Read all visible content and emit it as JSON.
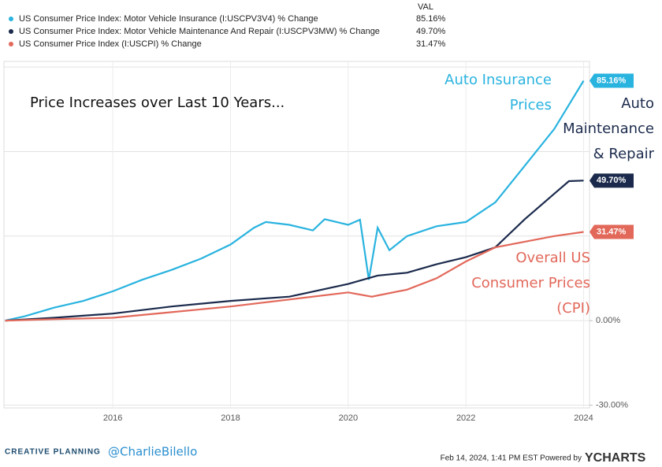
{
  "chart_data": {
    "type": "line",
    "value_column_header": "VAL",
    "xlim": [
      2014.15,
      2024.1
    ],
    "ylim": [
      -31,
      92
    ],
    "xticks": [
      2016,
      2018,
      2020,
      2022,
      2024
    ],
    "yticks": [
      {
        "value": 0,
        "label": "0.00%"
      },
      {
        "value": -30,
        "label": "-30.00%"
      }
    ],
    "ygrid": [
      -30,
      0,
      30,
      60,
      90
    ],
    "series": [
      {
        "name": "US Consumer Price Index: Motor Vehicle Insurance (I:USCPV3V4) % Change",
        "color": "#29b3df",
        "end_label": "85.16%",
        "x": [
          2014.17,
          2014.5,
          2015,
          2015.5,
          2016,
          2016.5,
          2017,
          2017.5,
          2018,
          2018.4,
          2018.6,
          2019,
          2019.4,
          2019.6,
          2020,
          2020.2,
          2020.35,
          2020.5,
          2020.7,
          2021,
          2021.5,
          2022,
          2022.5,
          2023,
          2023.5,
          2024
        ],
        "values": [
          0,
          1.5,
          4.6,
          7,
          10.4,
          14.5,
          18,
          22,
          27,
          33,
          35,
          34,
          32,
          36,
          34,
          35.8,
          14.5,
          33,
          25,
          30,
          33.5,
          35,
          42,
          55,
          68,
          85.16
        ]
      },
      {
        "name": "US Consumer Price Index: Motor Vehicle Maintenance And Repair (I:USCPV3MW) % Change",
        "color": "#1b2a4c",
        "end_label": "49.70%",
        "x": [
          2014.17,
          2015,
          2016,
          2017,
          2018,
          2019,
          2020,
          2020.5,
          2021,
          2021.5,
          2022,
          2022.5,
          2023,
          2023.5,
          2023.75,
          2024
        ],
        "values": [
          0,
          1,
          2.5,
          5,
          7,
          8.5,
          13,
          16,
          17,
          20,
          22.5,
          26,
          36,
          45,
          49.5,
          49.7
        ]
      },
      {
        "name": "US Consumer Price Index (I:USCPI) % Change",
        "color": "#e2685a",
        "end_label": "31.47%",
        "x": [
          2014.17,
          2015,
          2016,
          2017,
          2018,
          2019,
          2020,
          2020.4,
          2021,
          2021.5,
          2022,
          2022.5,
          2023,
          2023.5,
          2024
        ],
        "values": [
          0,
          0.5,
          1,
          3,
          5,
          7.5,
          10,
          8.5,
          11,
          15,
          21,
          26,
          28,
          30,
          31.47
        ]
      }
    ],
    "chart_title": "Price  Increases over Last 10 Years...",
    "annotations": [
      {
        "lines": [
          "Auto Insurance",
          "Prices"
        ],
        "color": "#29b3df"
      },
      {
        "lines": [
          "Auto",
          "Maintenance",
          "& Repair"
        ],
        "color": "#1b2a4c"
      },
      {
        "lines": [
          "Overall US",
          "Consumer Prices",
          "(CPI)"
        ],
        "color": "#e2685a"
      }
    ]
  },
  "footer": {
    "brand": "CREATIVE PLANNING",
    "handle": "@CharlieBilello",
    "timestamp": "Feb 14, 2024, 1:41 PM EST Powered by",
    "provider": "YCHARTS"
  }
}
